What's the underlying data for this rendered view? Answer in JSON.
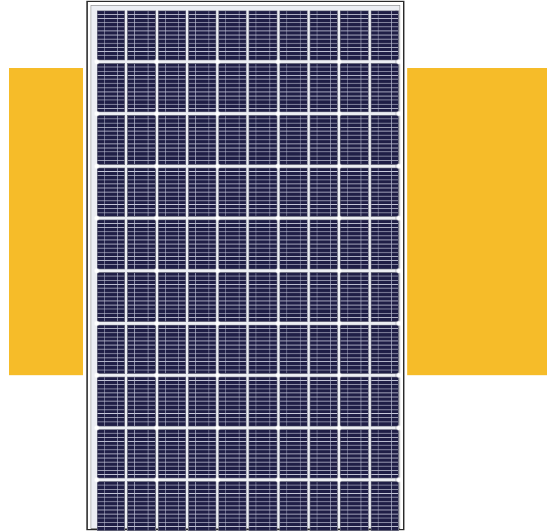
{
  "colors": {
    "accent": "#F6BC29",
    "frame": "#2A2A2A",
    "cell": "#22214A",
    "busbar": "#C9CBDC"
  },
  "panel": {
    "cell_columns": 10,
    "cell_rows": 10
  }
}
